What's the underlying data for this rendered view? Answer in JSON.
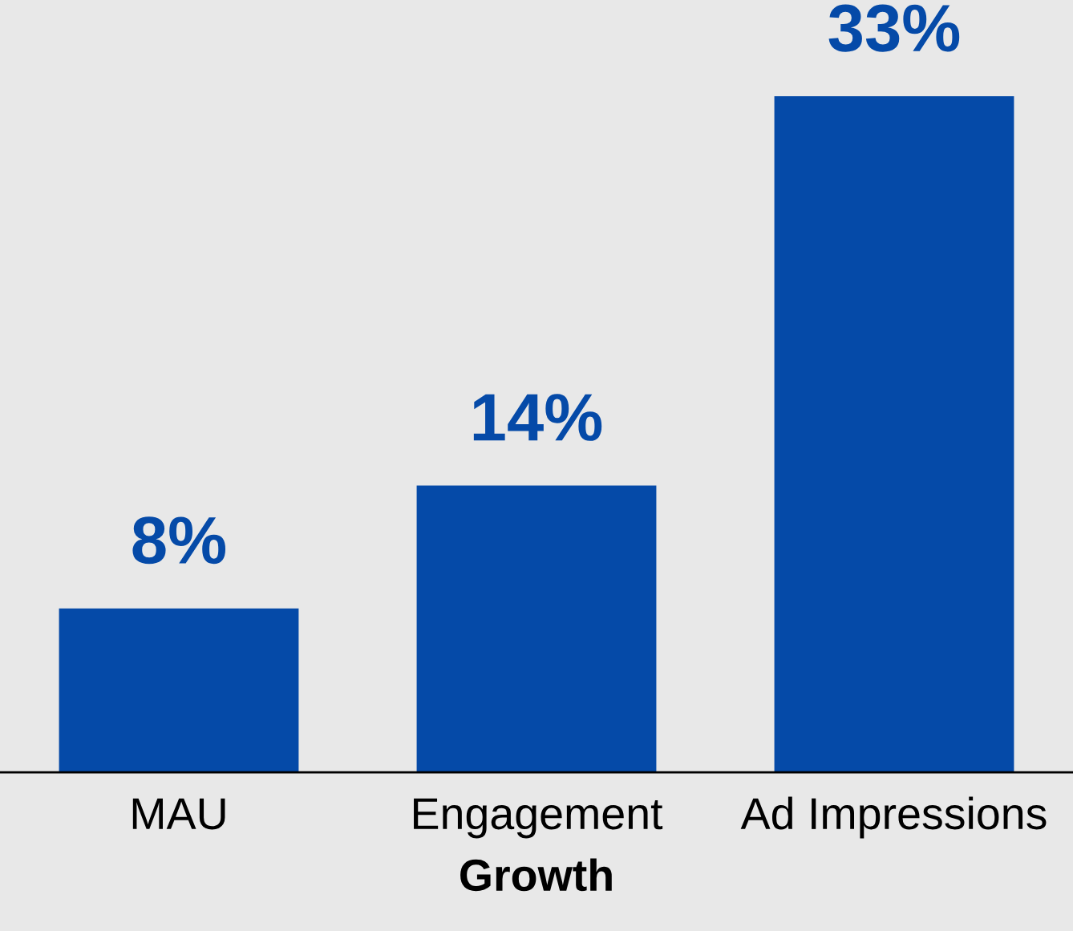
{
  "chart_data": {
    "type": "bar",
    "xlabel": "Growth",
    "categories": [
      "MAU",
      "Engagement",
      "Ad Impressions"
    ],
    "values": [
      8,
      14,
      33
    ],
    "color": "#054aa8",
    "data_labels": true,
    "value_labels": [
      "8%",
      "14%",
      "33%"
    ],
    "grid": false,
    "legend": false
  }
}
